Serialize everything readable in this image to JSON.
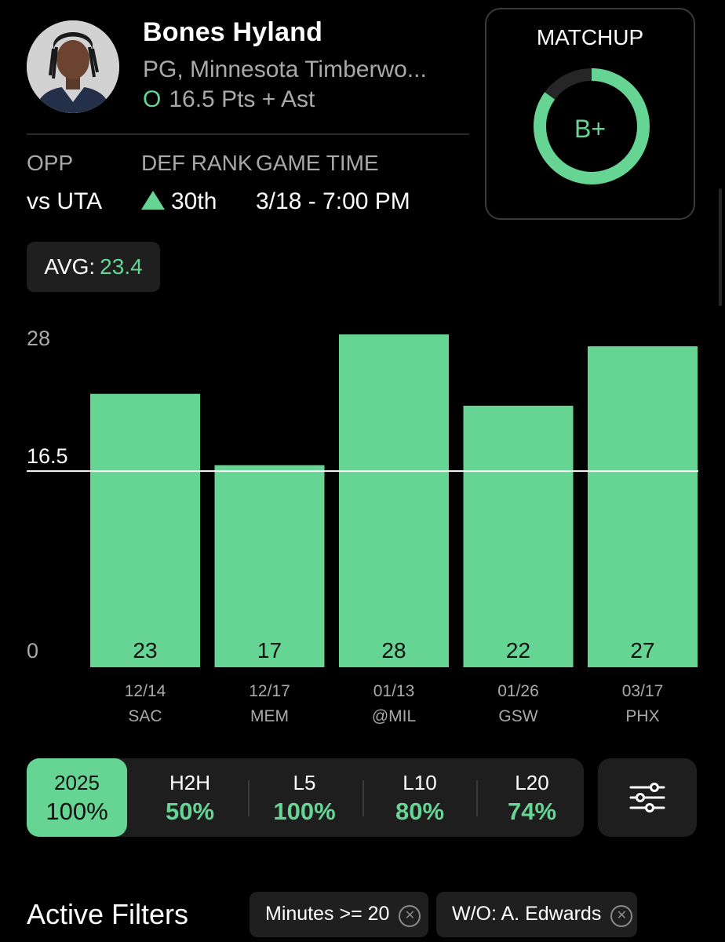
{
  "player": {
    "name": "Bones Hyland",
    "team": "PG, Minnesota Timberwo...",
    "prop_over": "O",
    "prop_text": "16.5 Pts + Ast"
  },
  "meta": {
    "opp_label": "OPP",
    "opp_value": "vs UTA",
    "def_rank_label": "DEF RANK",
    "def_rank_value": "30th",
    "game_time_label": "GAME TIME",
    "game_time_value": "3/18 - 7:00 PM"
  },
  "matchup": {
    "title": "MATCHUP",
    "grade": "B+",
    "ring_fraction": 0.85
  },
  "avg": {
    "label": "AVG:",
    "value": "23.4"
  },
  "colors": {
    "accent": "#66d594",
    "background": "#000000",
    "card": "#1e1e1e",
    "muted_text": "#a9a9a9"
  },
  "chart_data": {
    "type": "bar",
    "categories": [
      "12/14",
      "12/17",
      "01/13",
      "01/26",
      "03/17"
    ],
    "opponents": [
      "SAC",
      "MEM",
      "@MIL",
      "GSW",
      "PHX"
    ],
    "values": [
      23,
      17,
      28,
      22,
      27
    ],
    "ylim": [
      0,
      28
    ],
    "y_ticks": [
      "0",
      "28"
    ],
    "reference_line": {
      "value": 16.5,
      "label": "16.5"
    },
    "bar_color": "#66d594"
  },
  "tabs": [
    {
      "label": "2025",
      "pct": "100%",
      "active": true
    },
    {
      "label": "H2H",
      "pct": "50%",
      "active": false
    },
    {
      "label": "L5",
      "pct": "100%",
      "active": false
    },
    {
      "label": "L10",
      "pct": "80%",
      "active": false
    },
    {
      "label": "L20",
      "pct": "74%",
      "active": false
    }
  ],
  "filter_button_icon": "sliders-icon",
  "filters": {
    "title": "Active Filters",
    "chips": [
      {
        "label": "Minutes >= 20",
        "icon": "close-circle-icon"
      },
      {
        "label": "W/O:  A. Edwards",
        "icon": "close-circle-icon"
      }
    ]
  }
}
